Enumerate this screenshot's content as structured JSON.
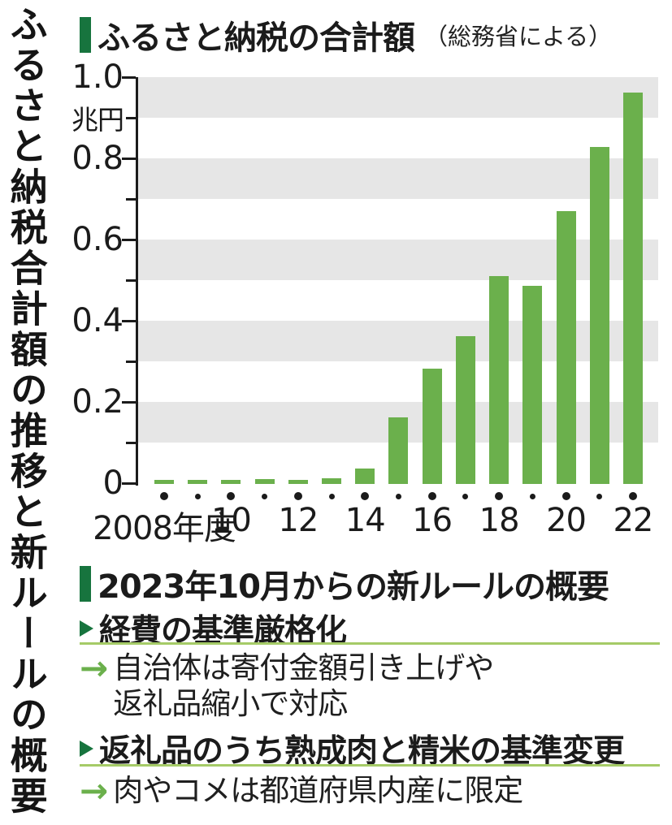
{
  "vertical_title": "ふるさと納税合計額の推移と新ルールの概要",
  "chart_header": {
    "title": "ふるさと納税の合計額",
    "source": "（総務省による）"
  },
  "chart_data": {
    "type": "bar",
    "title": "ふるさと納税の合計額",
    "source": "総務省による",
    "unit": "兆円",
    "categories": [
      "2008",
      "2009",
      "2010",
      "2011",
      "2012",
      "2013",
      "2014",
      "2015",
      "2016",
      "2017",
      "2018",
      "2019",
      "2020",
      "2021",
      "2022"
    ],
    "values": [
      0.008,
      0.008,
      0.01,
      0.012,
      0.01,
      0.015,
      0.039,
      0.165,
      0.284,
      0.365,
      0.513,
      0.488,
      0.672,
      0.83,
      0.965
    ],
    "xlabel": "年度",
    "ylabel": "兆円",
    "ylim": [
      0,
      1.0
    ],
    "ytick_interval": 0.1,
    "ytick_labels": [
      {
        "value": 1.0,
        "label": "1.0"
      },
      {
        "value": 0.8,
        "label": "0.8"
      },
      {
        "value": 0.6,
        "label": "0.6"
      },
      {
        "value": 0.4,
        "label": "0.4"
      },
      {
        "value": 0.2,
        "label": "0.2"
      },
      {
        "value": 0.0,
        "label": "0"
      }
    ],
    "y_unit_label": {
      "value": 0.9,
      "label": "兆円"
    },
    "xtick_labels": [
      {
        "index": 0,
        "label": "2008年度"
      },
      {
        "index": 2,
        "label": "10"
      },
      {
        "index": 4,
        "label": "12"
      },
      {
        "index": 6,
        "label": "14"
      },
      {
        "index": 8,
        "label": "16"
      },
      {
        "index": 10,
        "label": "18"
      },
      {
        "index": 12,
        "label": "20"
      },
      {
        "index": 14,
        "label": "22"
      }
    ],
    "grid": "alternating horizontal gray bands every 0.1 starting gray at top",
    "legend_position": "none"
  },
  "rules": {
    "heading": "2023年10月からの新ルールの概要",
    "items": [
      {
        "title": "経費の基準厳格化",
        "details": [
          "自治体は寄付金額引き上げや",
          "返礼品縮小で対応"
        ]
      },
      {
        "title": "返礼品のうち熟成肉と精米の基準変更",
        "details": [
          "肉やコメは都道府県内産に限定"
        ]
      }
    ]
  },
  "colors": {
    "bar_green": "#6bb04c",
    "dark_green": "#17743e",
    "light_green_line": "#a5cb67",
    "stripe_gray": "#e6e6e6",
    "text": "#1b1b1b"
  }
}
